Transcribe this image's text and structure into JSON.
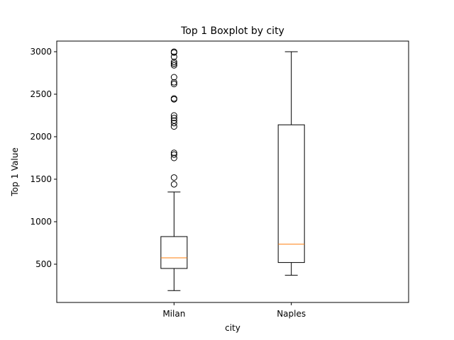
{
  "chart_data": {
    "type": "boxplot",
    "title": "Top 1 Boxplot by city",
    "xlabel": "city",
    "ylabel": "Top 1 Value",
    "categories": [
      "Milan",
      "Naples"
    ],
    "ylim": [
      50,
      3125
    ],
    "yticks": [
      500,
      1000,
      1500,
      2000,
      2500,
      3000
    ],
    "grid": false,
    "colors": {
      "box": "#000000",
      "median": "#ff7f0e",
      "background": "#ffffff"
    },
    "boxes": [
      {
        "category": "Milan",
        "whisker_low": 190,
        "q1": 450,
        "median": 575,
        "q3": 825,
        "whisker_high": 1350,
        "outliers": [
          1440,
          1520,
          1750,
          1790,
          1810,
          2120,
          2160,
          2190,
          2220,
          2250,
          2440,
          2450,
          2620,
          2640,
          2700,
          2840,
          2860,
          2880,
          2940,
          2990,
          3000
        ]
      },
      {
        "category": "Naples",
        "whisker_low": 370,
        "q1": 520,
        "median": 735,
        "q3": 2140,
        "whisker_high": 3000,
        "outliers": []
      }
    ]
  }
}
